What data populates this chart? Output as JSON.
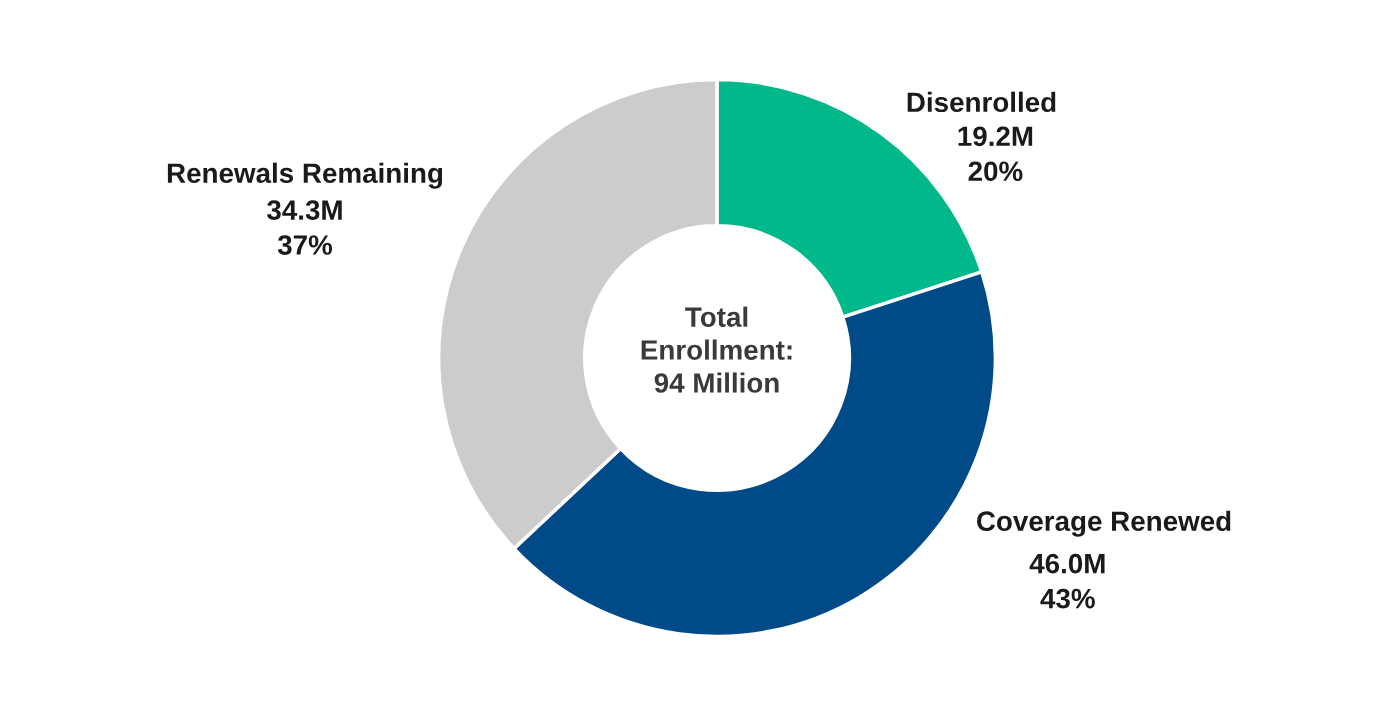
{
  "chart_data": {
    "type": "donut",
    "categories": [
      "Disenrolled",
      "Coverage Renewed",
      "Renewals Remaining"
    ],
    "values": [
      20,
      43,
      37
    ],
    "value_labels": [
      "19.2M\n20%",
      "46.0M\n43%",
      "34.3M\n37%"
    ],
    "colors": [
      "#00b88a",
      "#004a87",
      "#cccccc"
    ],
    "annotations": [
      "Total\nEnrollment:\n94 Million"
    ],
    "legend": false
  }
}
